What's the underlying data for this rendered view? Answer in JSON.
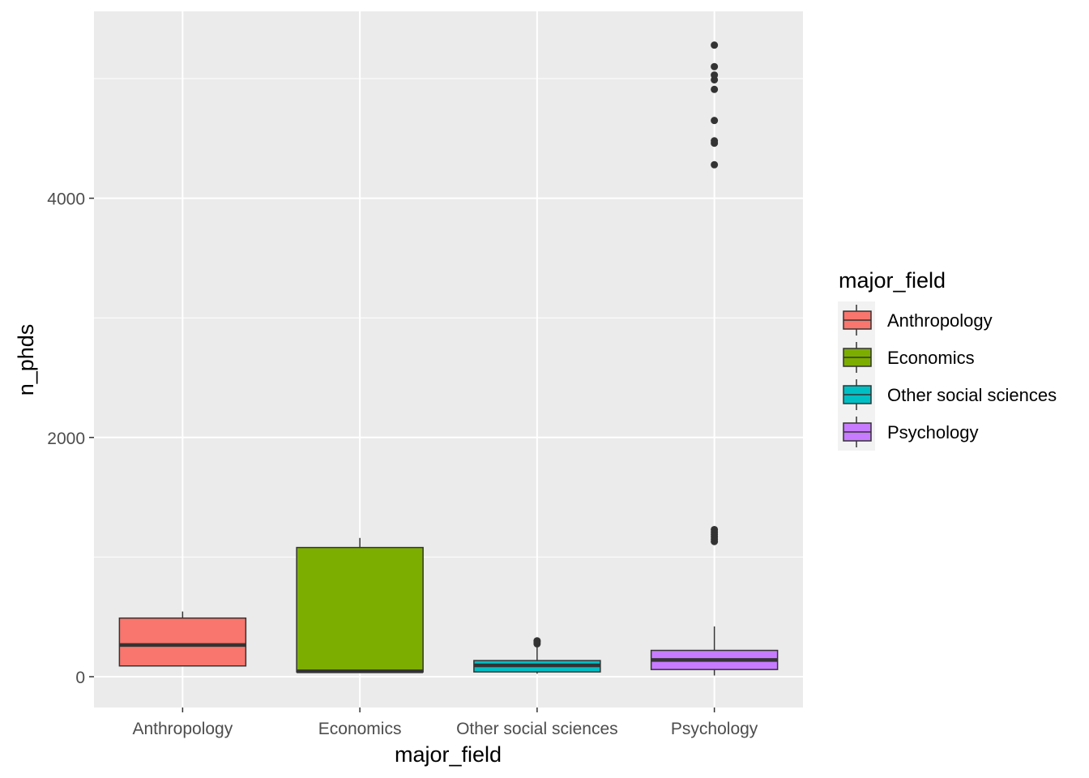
{
  "chart_data": {
    "type": "boxplot",
    "xlabel": "major_field",
    "ylabel": "n_phds",
    "ylim": [
      -260,
      5550
    ],
    "yticks": [
      0,
      2000,
      4000
    ],
    "grid": true,
    "legend": {
      "title": "major_field",
      "placement": "right"
    },
    "categories": [
      "Anthropology",
      "Economics",
      "Other social sciences",
      "Psychology"
    ],
    "colors": [
      "#F8766D",
      "#7CAE00",
      "#00BFC4",
      "#C77CFF"
    ],
    "series": [
      {
        "name": "Anthropology",
        "whisker_low": 90,
        "q1": 90,
        "median": 265,
        "q3": 490,
        "whisker_high": 545,
        "outliers": []
      },
      {
        "name": "Economics",
        "whisker_low": 30,
        "q1": 40,
        "median": 45,
        "q3": 1080,
        "whisker_high": 1160,
        "outliers": []
      },
      {
        "name": "Other social sciences",
        "whisker_low": 25,
        "q1": 40,
        "median": 95,
        "q3": 135,
        "whisker_high": 265,
        "outliers": [
          275,
          290,
          300
        ]
      },
      {
        "name": "Psychology",
        "whisker_low": 10,
        "q1": 60,
        "median": 140,
        "q3": 220,
        "whisker_high": 420,
        "outliers": [
          1130,
          1150,
          1170,
          1190,
          1210,
          1230,
          4280,
          4460,
          4480,
          4650,
          4910,
          4990,
          5030,
          5100,
          5280
        ]
      }
    ]
  }
}
